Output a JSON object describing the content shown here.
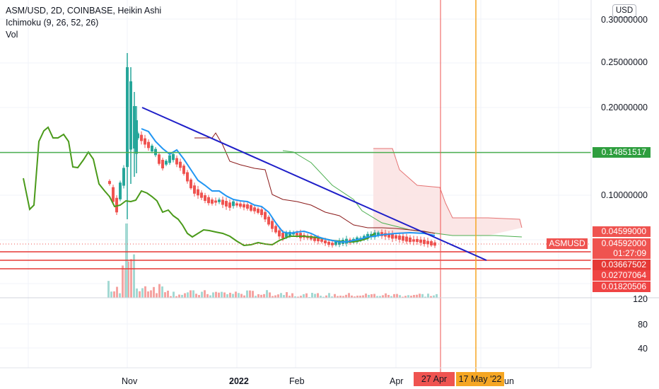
{
  "legend": {
    "symbol": "ASM/USD, 2D, COINBASE, Heikin Ashi",
    "ichimoku": "Ichimoku (9, 26, 52, 26)",
    "vol": "Vol"
  },
  "currency": "USD",
  "price_axis": [
    "0.30000000",
    "0.25000000",
    "0.20000000",
    "0.10000000"
  ],
  "volume_axis": [
    "120",
    "80",
    "40"
  ],
  "time_axis": [
    "Nov",
    "2022",
    "Feb",
    "Apr",
    "un"
  ],
  "tags": {
    "green_level": "0.14851517",
    "current_a": "0.04599000",
    "symbol": "ASMUSD",
    "current_b": "0.04592000",
    "countdown": "01:27:09",
    "red_1": "0.03667502",
    "red_2": "0.02707064",
    "red_3": "0.01820506"
  },
  "date_tags": {
    "red": "27 Apr",
    "orange": "17 May '22"
  },
  "colors": {
    "up": "#26a69a",
    "down": "#ef5350",
    "green_line": "#4caf50",
    "red_line": "#e53935",
    "orange_line": "#f5a623",
    "trend_line": "#1e1ec8",
    "tenkan": "#2196f3",
    "kijun": "#8b1a1a",
    "lagging": "#4a9a1a",
    "cloud": "#fbe3e3"
  },
  "chart_data": {
    "type": "candlestick",
    "price_ticks": [
      0.3,
      0.25,
      0.2,
      0.1
    ],
    "volume_ticks": [
      120,
      80,
      40
    ],
    "horizontal_levels": [
      {
        "value": 0.14851517,
        "color": "green"
      },
      {
        "value": 0.03667502,
        "color": "red"
      },
      {
        "value": 0.02707064,
        "color": "red"
      },
      {
        "value": 0.01820506,
        "color": "red"
      }
    ],
    "last_price": 0.04592,
    "vertical_markers": [
      {
        "label": "27 Apr",
        "color": "red"
      },
      {
        "label": "17 May '22",
        "color": "orange"
      }
    ],
    "trendline": {
      "from_price": 0.2,
      "to_price": 0.03,
      "direction": "down"
    }
  }
}
